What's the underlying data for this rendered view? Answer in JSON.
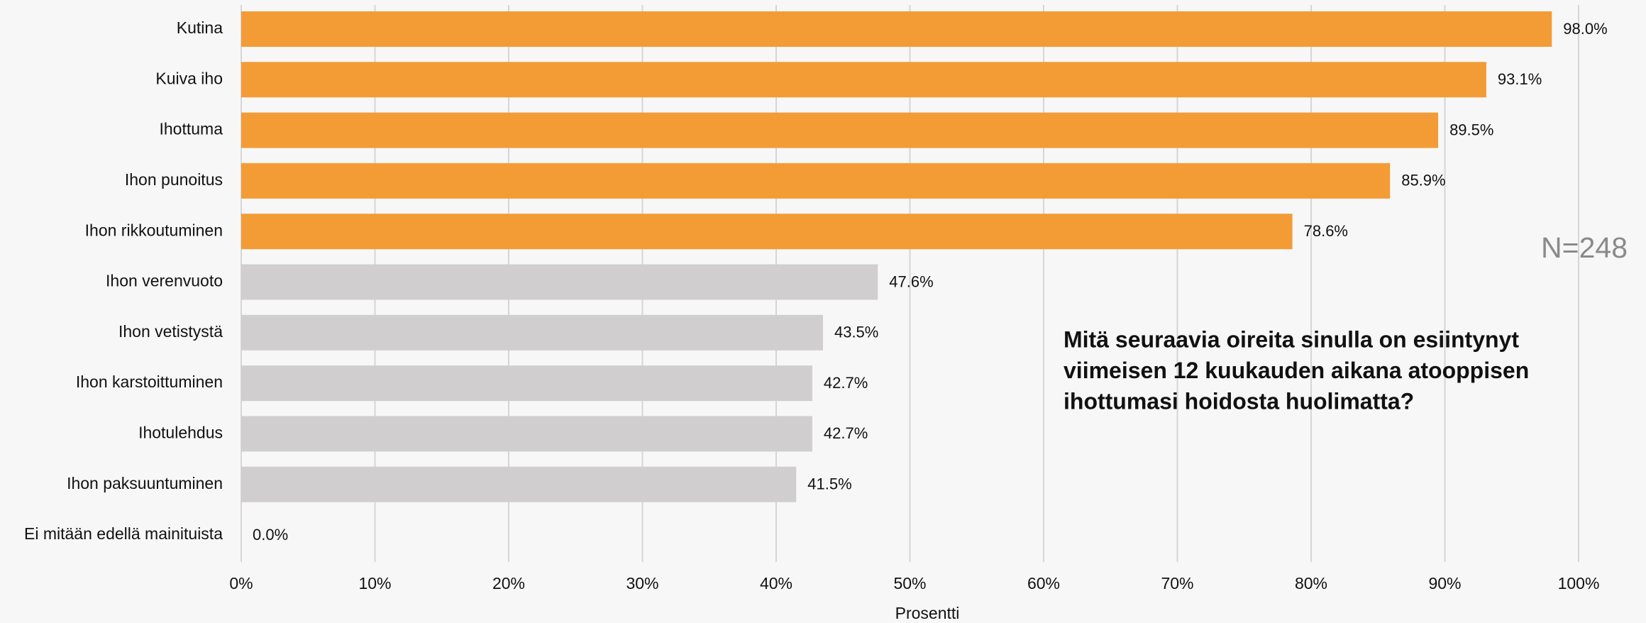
{
  "chart_data": {
    "type": "hbar",
    "categories": [
      "Kutina",
      "Kuiva iho",
      "Ihottuma",
      "Ihon punoitus",
      "Ihon rikkoutuminen",
      "Ihon verenvuoto",
      "Ihon vetistystä",
      "Ihon karstoittuminen",
      "Ihotulehdus",
      "Ihon paksuuntuminen",
      "Ei mitään edellä mainituista"
    ],
    "values": [
      98.0,
      93.1,
      89.5,
      85.9,
      78.6,
      47.6,
      43.5,
      42.7,
      42.7,
      41.5,
      0.0
    ],
    "value_labels": [
      "98.0%",
      "93.1%",
      "89.5%",
      "85.9%",
      "78.6%",
      "47.6%",
      "43.5%",
      "42.7%",
      "42.7%",
      "41.5%",
      "0.0%"
    ],
    "colors": [
      "#f39c36",
      "#f39c36",
      "#f39c36",
      "#f39c36",
      "#f39c36",
      "#d0cece",
      "#d0cece",
      "#d0cece",
      "#d0cece",
      "#d0cece",
      "#d0cece"
    ],
    "xlim": [
      0,
      100
    ],
    "xticks": [
      {
        "value": 0,
        "label": "0%"
      },
      {
        "value": 10,
        "label": "10%"
      },
      {
        "value": 20,
        "label": "20%"
      },
      {
        "value": 30,
        "label": "30%"
      },
      {
        "value": 40,
        "label": "40%"
      },
      {
        "value": 50,
        "label": "50%"
      },
      {
        "value": 60,
        "label": "60%"
      },
      {
        "value": 70,
        "label": "70%"
      },
      {
        "value": 80,
        "label": "80%"
      },
      {
        "value": 90,
        "label": "90%"
      },
      {
        "value": 100,
        "label": "100%"
      }
    ],
    "xlabel": "Prosentti",
    "grid": true,
    "annotation_lines": [
      "Mitä seuraavia oireita sinulla on esiintynyt",
      "viimeisen 12 kuukauden aikana atooppisen",
      "ihottumasi hoidosta huolimatta?"
    ],
    "note": "N=248"
  }
}
